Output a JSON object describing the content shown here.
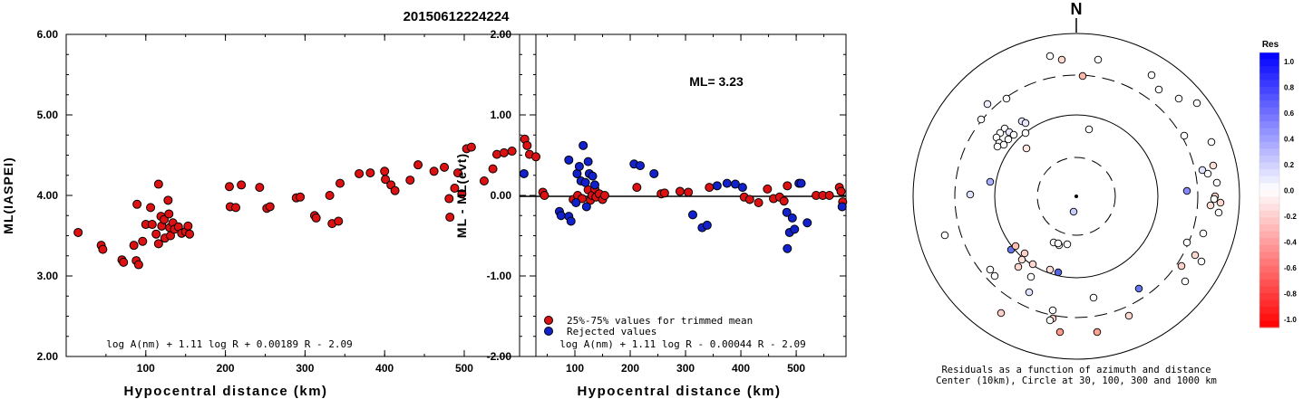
{
  "event_id": "20150612224224",
  "colors": {
    "accepted": "#dd1111",
    "rejected": "#1122cc",
    "marker_edge": "#000000"
  },
  "left_panel": {
    "ylabel": "ML(IASPEI)",
    "xlabel": "Hypocentral distance (km)",
    "formula": "log A(nm) + 1.11 log R + 0.00189 R - 2.09",
    "yticks": [
      "2.00",
      "3.00",
      "4.00",
      "5.00",
      "6.00"
    ],
    "xticks": [
      "100",
      "200",
      "300",
      "400",
      "500"
    ]
  },
  "middle_panel": {
    "ylabel": "ML - ML(evt)",
    "xlabel": "Hypocentral distance (km)",
    "ml_text": "ML= 3.23",
    "formula": "log A(nm) + 1.11 log R - 0.00044 R - 2.09",
    "legend_accepted": "25%-75% values for trimmed mean",
    "legend_rejected": "Rejected values",
    "yticks": [
      "-2.00",
      "-1.00",
      "0.00",
      "1.00",
      "2.00"
    ],
    "xticks": [
      "100",
      "200",
      "300",
      "400",
      "500"
    ]
  },
  "right_panel": {
    "north": "N",
    "caption1": "Residuals as a function of azimuth and distance",
    "caption2": "Center (10km), Circle at 30, 100, 300 and 1000 km",
    "colorbar_title": "Res",
    "colorbar_ticks": [
      "1.0",
      "0.8",
      "0.6",
      "0.4",
      "0.2",
      "0.0",
      "-0.2",
      "-0.4",
      "-0.6",
      "-0.8",
      "-1.0"
    ]
  },
  "chart_data": [
    {
      "type": "scatter",
      "title": "20150612224224",
      "xlabel": "Hypocentral distance (km)",
      "ylabel": "ML(IASPEI)",
      "xlim": [
        0,
        590
      ],
      "ylim": [
        2.0,
        6.0
      ],
      "annotation": "log A(nm) + 1.11 log R + 0.00189 R - 2.09",
      "series": [
        {
          "points": [
            [
              15,
              3.54
            ],
            [
              44,
              3.38
            ],
            [
              46,
              3.33
            ],
            [
              70,
              3.2
            ],
            [
              72,
              3.17
            ],
            [
              85,
              3.38
            ],
            [
              88,
              3.19
            ],
            [
              91,
              3.14
            ],
            [
              89,
              3.89
            ],
            [
              96,
              3.43
            ],
            [
              100,
              3.64
            ],
            [
              106,
              3.85
            ],
            [
              108,
              3.64
            ],
            [
              113,
              3.52
            ],
            [
              116,
              4.14
            ],
            [
              116,
              3.4
            ],
            [
              119,
              3.74
            ],
            [
              120,
              3.62
            ],
            [
              123,
              3.7
            ],
            [
              124,
              3.47
            ],
            [
              128,
              3.94
            ],
            [
              129,
              3.77
            ],
            [
              130,
              3.6
            ],
            [
              131,
              3.5
            ],
            [
              134,
              3.66
            ],
            [
              136,
              3.58
            ],
            [
              141,
              3.61
            ],
            [
              145,
              3.53
            ],
            [
              150,
              3.55
            ],
            [
              153,
              3.62
            ],
            [
              155,
              3.52
            ],
            [
              205,
              4.11
            ],
            [
              206,
              3.86
            ],
            [
              213,
              3.85
            ],
            [
              220,
              4.13
            ],
            [
              243,
              4.1
            ],
            [
              252,
              3.84
            ],
            [
              256,
              3.86
            ],
            [
              289,
              3.97
            ],
            [
              294,
              3.98
            ],
            [
              312,
              3.75
            ],
            [
              314,
              3.72
            ],
            [
              331,
              4.0
            ],
            [
              334,
              3.65
            ],
            [
              342,
              3.68
            ],
            [
              344,
              4.15
            ],
            [
              368,
              4.27
            ],
            [
              382,
              4.28
            ],
            [
              400,
              4.3
            ],
            [
              401,
              4.2
            ],
            [
              408,
              4.13
            ],
            [
              413,
              4.06
            ],
            [
              432,
              4.19
            ],
            [
              442,
              4.38
            ],
            [
              462,
              4.3
            ],
            [
              475,
              4.35
            ],
            [
              481,
              3.96
            ],
            [
              482,
              3.73
            ],
            [
              488,
              4.09
            ],
            [
              492,
              4.28
            ],
            [
              497,
              4.02
            ],
            [
              503,
              4.58
            ],
            [
              509,
              4.6
            ],
            [
              525,
              4.18
            ],
            [
              536,
              4.33
            ],
            [
              541,
              4.51
            ],
            [
              550,
              4.53
            ],
            [
              560,
              4.55
            ],
            [
              576,
              4.7
            ],
            [
              579,
              4.62
            ],
            [
              582,
              4.51
            ],
            [
              590,
              4.48
            ]
          ]
        }
      ]
    },
    {
      "type": "scatter",
      "xlabel": "Hypocentral distance (km)",
      "ylabel": "ML - ML(evt)",
      "xlim": [
        0,
        590
      ],
      "ylim": [
        -2.0,
        2.0
      ],
      "annotation": "ML= 3.23",
      "reference_line_y": 0.0,
      "series": [
        {
          "name": "25%-75% values for trimmed mean",
          "points": [
            [
              42,
              0.04
            ],
            [
              45,
              0.0
            ],
            [
              97,
              -0.05
            ],
            [
              105,
              0.0
            ],
            [
              113,
              -0.04
            ],
            [
              124,
              0.07
            ],
            [
              128,
              -0.06
            ],
            [
              131,
              0.0
            ],
            [
              136,
              0.08
            ],
            [
              138,
              -0.02
            ],
            [
              144,
              0.02
            ],
            [
              150,
              -0.05
            ],
            [
              154,
              0.0
            ],
            [
              212,
              0.1
            ],
            [
              256,
              0.02
            ],
            [
              262,
              0.03
            ],
            [
              290,
              0.05
            ],
            [
              305,
              0.04
            ],
            [
              343,
              0.1
            ],
            [
              406,
              -0.02
            ],
            [
              416,
              -0.05
            ],
            [
              432,
              -0.09
            ],
            [
              448,
              0.08
            ],
            [
              459,
              -0.04
            ],
            [
              470,
              -0.02
            ],
            [
              478,
              -0.07
            ],
            [
              484,
              0.12
            ],
            [
              536,
              0.0
            ],
            [
              548,
              0.0
            ],
            [
              560,
              0.0
            ],
            [
              578,
              0.1
            ],
            [
              581,
              0.05
            ],
            [
              584,
              -0.08
            ]
          ]
        },
        {
          "name": "Rejected values",
          "points": [
            [
              8,
              0.27
            ],
            [
              72,
              -0.2
            ],
            [
              75,
              -0.25
            ],
            [
              89,
              0.44
            ],
            [
              89,
              -0.26
            ],
            [
              93,
              -0.32
            ],
            [
              102,
              -0.09
            ],
            [
              104,
              0.27
            ],
            [
              108,
              0.36
            ],
            [
              111,
              0.18
            ],
            [
              115,
              0.62
            ],
            [
              119,
              0.16
            ],
            [
              121,
              -0.14
            ],
            [
              124,
              0.42
            ],
            [
              126,
              0.27
            ],
            [
              132,
              0.24
            ],
            [
              136,
              0.13
            ],
            [
              207,
              0.39
            ],
            [
              218,
              0.37
            ],
            [
              243,
              0.27
            ],
            [
              313,
              -0.24
            ],
            [
              330,
              -0.4
            ],
            [
              339,
              -0.37
            ],
            [
              357,
              0.12
            ],
            [
              375,
              0.15
            ],
            [
              390,
              0.14
            ],
            [
              403,
              0.1
            ],
            [
              483,
              -0.21
            ],
            [
              484,
              -0.66
            ],
            [
              488,
              -0.46
            ],
            [
              493,
              -0.28
            ],
            [
              497,
              -0.42
            ],
            [
              505,
              0.15
            ],
            [
              509,
              0.15
            ],
            [
              520,
              -0.34
            ],
            [
              583,
              -0.14
            ]
          ]
        }
      ]
    }
  ]
}
